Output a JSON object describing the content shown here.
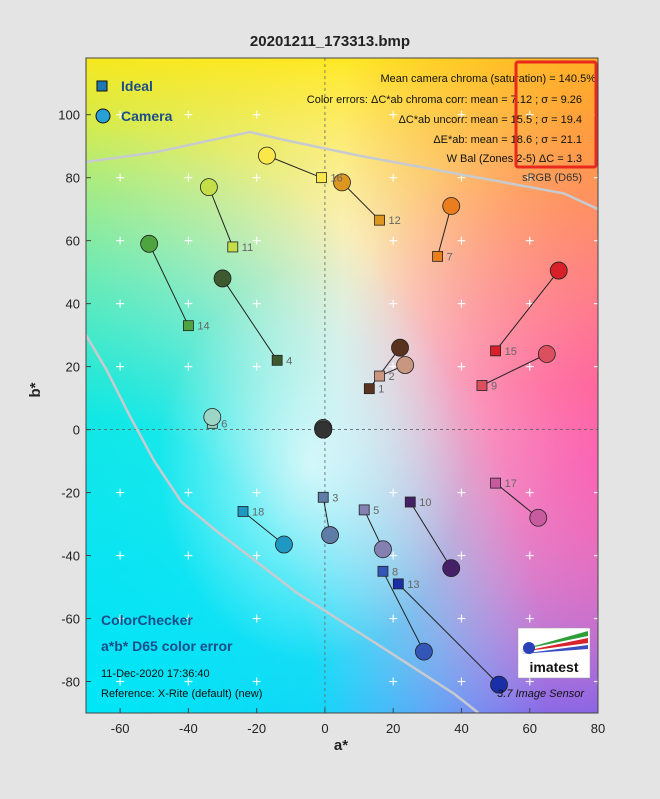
{
  "chart_data": {
    "type": "scatter",
    "title": "20201211_173313.bmp",
    "xlabel": "a*",
    "ylabel": "b*",
    "xlim": [
      -70,
      80
    ],
    "ylim": [
      -90,
      118
    ],
    "x_ticks": [
      -60,
      -40,
      -20,
      0,
      20,
      40,
      60,
      80
    ],
    "y_ticks": [
      100,
      80,
      60,
      40,
      20,
      0,
      -20,
      -40,
      -60,
      -80
    ],
    "x_tick_labels": [
      "-60",
      "-40",
      "-20",
      "0",
      "20",
      "40",
      "60",
      "80"
    ],
    "y_tick_labels": [
      "100",
      "80",
      "60",
      "40",
      "20",
      "0",
      "-20",
      "-40",
      "-60",
      "-80"
    ],
    "legend": {
      "placement": "top-left",
      "ideal_label": "Ideal",
      "camera_label": "Camera",
      "ideal_color": "#1f77b4",
      "camera_color": "#27a0d6"
    },
    "stats_lines": [
      "Mean camera chroma (saturation) = 140.5%",
      "Color errors:  ΔC*ab chroma corr:  mean = 7.12 ;  σ = 9.26",
      "ΔC*ab uncorr:  mean = 15.5 ;  σ = 19.4",
      "ΔE*ab:  mean = 18.6 ;  σ = 21.1",
      "W Bal (Zones 2-5) ΔC = 1.3",
      "sRGB (D65)"
    ],
    "highlight_color": "#e8291c",
    "bottom_left_lines": [
      "ColorChecker",
      "a*b* D65 color error",
      "11-Dec-2020 17:36:40",
      "Reference: X-Rite (default) (new)"
    ],
    "bottom_right_text": "3.7 Image Sensor",
    "logo_text": "imatest",
    "gamut_boundary": [
      [
        -70,
        85
      ],
      [
        -50,
        88
      ],
      [
        -35,
        91.5
      ],
      [
        -22,
        94.5
      ],
      [
        -12,
        92
      ],
      [
        10,
        87
      ],
      [
        30,
        83
      ],
      [
        50,
        79
      ],
      [
        70,
        75
      ],
      [
        80,
        70
      ]
    ],
    "gamut_boundary_lower": [
      [
        -70,
        30
      ],
      [
        -64,
        19
      ],
      [
        -57,
        4
      ],
      [
        -50,
        -10
      ],
      [
        -42,
        -23
      ],
      [
        -32,
        -32
      ],
      [
        -20,
        -42
      ],
      [
        -8,
        -52
      ],
      [
        5,
        -61
      ],
      [
        18,
        -70
      ],
      [
        28,
        -77
      ],
      [
        38,
        -84
      ],
      [
        45,
        -90
      ]
    ],
    "patches": [
      {
        "id": "1",
        "ideal": [
          13,
          13
        ],
        "camera": [
          22,
          26
        ],
        "color": "#5a3220"
      },
      {
        "id": "2",
        "ideal": [
          16,
          17
        ],
        "camera": [
          23.5,
          20.5
        ],
        "color": "#c9967f"
      },
      {
        "id": "3",
        "ideal": [
          -0.5,
          -21.5
        ],
        "camera": [
          1.5,
          -33.5
        ],
        "color": "#5e7ca5"
      },
      {
        "id": "4",
        "ideal": [
          -14,
          22
        ],
        "camera": [
          -30,
          48
        ],
        "color": "#3d5a2f"
      },
      {
        "id": "5",
        "ideal": [
          11.5,
          -25.5
        ],
        "camera": [
          17,
          -38
        ],
        "color": "#8580b2"
      },
      {
        "id": "6",
        "ideal": [
          -33,
          2
        ],
        "camera": [
          -33,
          4
        ],
        "color": "#9bd6c6"
      },
      {
        "id": "7",
        "ideal": [
          33,
          55
        ],
        "camera": [
          37,
          71
        ],
        "color": "#ea7d1c"
      },
      {
        "id": "8",
        "ideal": [
          17,
          -45
        ],
        "camera": [
          29,
          -70.5
        ],
        "color": "#3456b8"
      },
      {
        "id": "9",
        "ideal": [
          46,
          14
        ],
        "camera": [
          65,
          24
        ],
        "color": "#dc4f5e"
      },
      {
        "id": "10",
        "ideal": [
          25,
          -23
        ],
        "camera": [
          37,
          -44
        ],
        "color": "#452066"
      },
      {
        "id": "11",
        "ideal": [
          -27,
          58
        ],
        "camera": [
          -34,
          77
        ],
        "color": "#c4de48"
      },
      {
        "id": "12",
        "ideal": [
          16,
          66.5
        ],
        "camera": [
          5,
          78.5
        ],
        "color": "#dd9620"
      },
      {
        "id": "13",
        "ideal": [
          21.5,
          -49
        ],
        "camera": [
          51,
          -81
        ],
        "color": "#1a2ea8"
      },
      {
        "id": "14",
        "ideal": [
          -40,
          33
        ],
        "camera": [
          -51.5,
          59
        ],
        "color": "#4ea540"
      },
      {
        "id": "15",
        "ideal": [
          50,
          25
        ],
        "camera": [
          68.5,
          50.5
        ],
        "color": "#d92028"
      },
      {
        "id": "16",
        "ideal": [
          -1,
          80
        ],
        "camera": [
          -17,
          87
        ],
        "color": "#fbe74a"
      },
      {
        "id": "17",
        "ideal": [
          50,
          -17
        ],
        "camera": [
          62.5,
          -28
        ],
        "color": "#c85aa0"
      },
      {
        "id": "18",
        "ideal": [
          -24,
          -26
        ],
        "camera": [
          -12,
          -36.5
        ],
        "color": "#1e97c2"
      },
      {
        "id": "",
        "ideal": [
          -0.5,
          -0.5
        ],
        "camera": [
          -0.5,
          0
        ],
        "color": "#f2f2f2"
      },
      {
        "id": "",
        "ideal": [
          -0.5,
          0
        ],
        "camera": [
          -0.5,
          0.5
        ],
        "color": "#c8c8c8"
      },
      {
        "id": "",
        "ideal": [
          -0.5,
          0
        ],
        "camera": [
          -0.5,
          0.5
        ],
        "color": "#a0a0a0"
      },
      {
        "id": "",
        "ideal": [
          -0.5,
          0
        ],
        "camera": [
          -0.5,
          0.5
        ],
        "color": "#7a7a7a"
      },
      {
        "id": "",
        "ideal": [
          0,
          0
        ],
        "camera": [
          -0.5,
          0
        ],
        "color": "#555555"
      },
      {
        "id": "",
        "ideal": [
          0,
          0
        ],
        "camera": [
          -0.5,
          0
        ],
        "color": "#333333"
      }
    ]
  }
}
